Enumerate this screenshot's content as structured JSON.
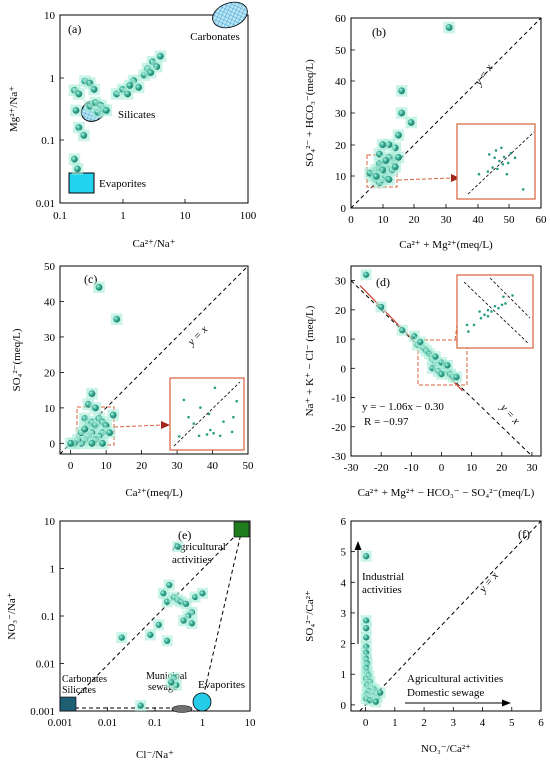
{
  "colors": {
    "point_fill": "#2a9d86",
    "point_halo": "#a9ecd9",
    "inset_box": "#d9623b",
    "carbonates_fill": "#bfe6f4",
    "evaporites_fill": "#22d2ee",
    "agri_box": "#1e7e1e",
    "carb_sil_box": "#1f5f73",
    "municipal_fill": "#707070",
    "evap_circle": "#27cde8",
    "silicates_fill": "#7fd5e8",
    "fit_line": "#c8402a"
  },
  "chart_data": [
    {
      "panel": "(a)",
      "type": "scatter",
      "xscale": "log",
      "yscale": "log",
      "xlim": [
        0.1,
        100
      ],
      "ylim": [
        0.01,
        10
      ],
      "xticks": [
        "0.1",
        "1",
        "10",
        "100"
      ],
      "yticks": [
        "0.01",
        "0.1",
        "1",
        "10"
      ],
      "xlabel": "Ca²⁺/Na⁺",
      "ylabel": "Mg²⁺/Na⁺",
      "regions": {
        "carbonates": "Carbonates",
        "silicates": "Silicates",
        "evaporites": "Evaporites"
      },
      "points": [
        [
          0.17,
          0.63
        ],
        [
          0.25,
          0.88
        ],
        [
          0.3,
          0.82
        ],
        [
          0.35,
          0.65
        ],
        [
          0.2,
          0.55
        ],
        [
          0.18,
          0.3
        ],
        [
          0.2,
          0.16
        ],
        [
          0.24,
          0.12
        ],
        [
          0.17,
          0.05
        ],
        [
          0.19,
          0.035
        ],
        [
          0.3,
          0.35
        ],
        [
          0.37,
          0.4
        ],
        [
          0.4,
          0.28
        ],
        [
          0.45,
          0.36
        ],
        [
          0.5,
          0.31
        ],
        [
          0.55,
          0.3
        ],
        [
          0.8,
          0.55
        ],
        [
          1.0,
          0.65
        ],
        [
          1.2,
          0.55
        ],
        [
          1.5,
          0.9
        ],
        [
          1.8,
          0.7
        ],
        [
          2.2,
          1.1
        ],
        [
          2.5,
          1.4
        ],
        [
          3.0,
          1.8
        ],
        [
          3.5,
          1.5
        ],
        [
          4.0,
          2.2
        ],
        [
          2.8,
          1.2
        ],
        [
          1.3,
          0.75
        ]
      ]
    },
    {
      "panel": "(b)",
      "type": "scatter",
      "xlim": [
        0,
        60
      ],
      "ylim": [
        0,
        60
      ],
      "xticks": [
        "0",
        "10",
        "20",
        "30",
        "40",
        "50",
        "60"
      ],
      "yticks": [
        "0",
        "10",
        "20",
        "30",
        "40",
        "50",
        "60"
      ],
      "xlabel": "Ca²⁺ + Mg²⁺(meq/L)",
      "ylabel": "SO₄²⁻ + HCO₃⁻(meq/L)",
      "line_label": "y = x",
      "points": [
        [
          31,
          57
        ],
        [
          19,
          27
        ],
        [
          16,
          37
        ],
        [
          16,
          30
        ],
        [
          15,
          23
        ],
        [
          14,
          19
        ],
        [
          12,
          20
        ],
        [
          10,
          20
        ],
        [
          9,
          17
        ],
        [
          13,
          15
        ],
        [
          12,
          16
        ],
        [
          11,
          13
        ],
        [
          10,
          11
        ],
        [
          8,
          12
        ],
        [
          7,
          10
        ],
        [
          8,
          9
        ],
        [
          9,
          8
        ],
        [
          10,
          9
        ],
        [
          11,
          10
        ],
        [
          12,
          9
        ],
        [
          13,
          12
        ],
        [
          14,
          13
        ],
        [
          15,
          16
        ],
        [
          6,
          11
        ],
        [
          9,
          14
        ],
        [
          11,
          15
        ],
        [
          10,
          12
        ],
        [
          8,
          10
        ]
      ],
      "inset_points": [
        [
          0.25,
          0.3
        ],
        [
          0.38,
          0.34
        ],
        [
          0.45,
          0.4
        ],
        [
          0.52,
          0.38
        ],
        [
          0.6,
          0.45
        ],
        [
          0.55,
          0.5
        ],
        [
          0.48,
          0.55
        ],
        [
          0.62,
          0.56
        ],
        [
          0.68,
          0.47
        ],
        [
          0.72,
          0.62
        ],
        [
          0.5,
          0.66
        ],
        [
          0.4,
          0.6
        ],
        [
          0.58,
          0.7
        ],
        [
          0.78,
          0.55
        ],
        [
          0.66,
          0.3
        ],
        [
          0.9,
          0.07
        ]
      ]
    },
    {
      "panel": "(c)",
      "type": "scatter",
      "xlim": [
        -3,
        50
      ],
      "ylim": [
        -3,
        50
      ],
      "xticks": [
        "0",
        "10",
        "20",
        "30",
        "40",
        "50"
      ],
      "yticks": [
        "0",
        "10",
        "20",
        "30",
        "40",
        "50"
      ],
      "xlabel": "Ca²⁺(meq/L)",
      "ylabel": "SO₄²⁻(meq/L)",
      "line_label": "y = x",
      "points": [
        [
          8,
          44
        ],
        [
          13,
          35
        ],
        [
          6,
          14
        ],
        [
          5,
          11
        ],
        [
          7,
          10
        ],
        [
          4,
          7
        ],
        [
          5,
          5
        ],
        [
          6,
          6
        ],
        [
          7,
          5
        ],
        [
          8,
          7
        ],
        [
          9,
          6
        ],
        [
          10,
          5
        ],
        [
          9,
          3
        ],
        [
          8,
          2
        ],
        [
          6,
          3
        ],
        [
          5,
          2
        ],
        [
          4,
          1
        ],
        [
          3,
          0
        ],
        [
          2,
          1
        ],
        [
          7,
          1
        ],
        [
          9,
          0
        ],
        [
          1,
          0
        ],
        [
          0,
          0
        ],
        [
          3,
          3
        ],
        [
          12,
          8
        ],
        [
          11,
          3
        ],
        [
          6,
          0
        ],
        [
          4,
          4
        ]
      ],
      "inset_points": [
        [
          0.62,
          0.91
        ],
        [
          0.15,
          0.72
        ],
        [
          0.4,
          0.6
        ],
        [
          0.22,
          0.45
        ],
        [
          0.53,
          0.5
        ],
        [
          0.95,
          0.7
        ],
        [
          0.88,
          0.22
        ],
        [
          0.6,
          0.2
        ],
        [
          0.5,
          0.18
        ],
        [
          0.55,
          0.25
        ],
        [
          0.7,
          0.16
        ],
        [
          0.3,
          0.35
        ],
        [
          0.08,
          0.15
        ],
        [
          0.38,
          0.16
        ],
        [
          0.75,
          0.38
        ],
        [
          0.9,
          0.45
        ]
      ]
    },
    {
      "panel": "(d)",
      "type": "scatter",
      "xlim": [
        -30,
        33
      ],
      "ylim": [
        -30,
        35
      ],
      "xticks": [
        "-30",
        "-20",
        "-10",
        "0",
        "10",
        "20",
        "30"
      ],
      "yticks": [
        "-30",
        "-20",
        "-10",
        "0",
        "10",
        "20",
        "30"
      ],
      "xlabel": "Ca²⁺ + Mg²⁺ − HCO₃⁻ − SO₄²⁻(meq/L)",
      "ylabel": "Na⁺ + K⁺ − Cl⁻ (meq/L)",
      "line_label": "y = x",
      "equation": "y = − 1.06x − 0.30",
      "r_value": "R = −0.97",
      "fit": {
        "slope": -1.06,
        "intercept": -0.3
      },
      "points": [
        [
          -25,
          32
        ],
        [
          -20,
          21
        ],
        [
          -13,
          13
        ],
        [
          -9,
          11
        ],
        [
          -8,
          8
        ],
        [
          -6,
          7
        ],
        [
          -5,
          6
        ],
        [
          -4,
          5
        ],
        [
          -3,
          3
        ],
        [
          -2,
          2
        ],
        [
          -1,
          1
        ],
        [
          0,
          0
        ],
        [
          1,
          0
        ],
        [
          2,
          -1
        ],
        [
          3,
          -2
        ],
        [
          1,
          1
        ],
        [
          0,
          2
        ],
        [
          -2,
          4
        ],
        [
          -3,
          0
        ],
        [
          4,
          -3
        ],
        [
          -1,
          -1
        ],
        [
          2,
          1
        ],
        [
          0,
          -2
        ],
        [
          -7,
          9
        ],
        [
          5,
          -3
        ]
      ],
      "inset_points": [
        [
          0.1,
          0.3
        ],
        [
          0.2,
          0.3
        ],
        [
          0.3,
          0.4
        ],
        [
          0.35,
          0.45
        ],
        [
          0.4,
          0.43
        ],
        [
          0.45,
          0.5
        ],
        [
          0.55,
          0.55
        ],
        [
          0.5,
          0.58
        ],
        [
          0.6,
          0.6
        ],
        [
          0.65,
          0.62
        ],
        [
          0.62,
          0.72
        ],
        [
          0.75,
          0.74
        ],
        [
          0.28,
          0.5
        ],
        [
          0.4,
          0.52
        ],
        [
          0.12,
          0.2
        ]
      ]
    },
    {
      "panel": "(e)",
      "type": "scatter",
      "xscale": "log",
      "yscale": "log",
      "xlim": [
        0.001,
        10
      ],
      "ylim": [
        0.001,
        10
      ],
      "xticks": [
        "0.001",
        "0.01",
        "0.1",
        "1",
        "10"
      ],
      "yticks": [
        "0.001",
        "0.01",
        "0.1",
        "1",
        "10"
      ],
      "xlabel": "Cl⁻/Na⁺",
      "ylabel": "NO₃⁻/Na⁺",
      "end_members": {
        "agricultural": "Agricultural activities",
        "carbonates_silicates": "Carbonates Silicates",
        "municipal": "Municipal sewage",
        "evaporites": "Evaporites"
      },
      "points": [
        [
          0.3,
          2.9
        ],
        [
          0.2,
          0.45
        ],
        [
          0.15,
          0.3
        ],
        [
          0.18,
          0.2
        ],
        [
          0.25,
          0.25
        ],
        [
          0.3,
          0.22
        ],
        [
          0.35,
          0.2
        ],
        [
          0.45,
          0.18
        ],
        [
          0.7,
          0.25
        ],
        [
          1.0,
          0.3
        ],
        [
          0.6,
          0.12
        ],
        [
          0.5,
          0.1
        ],
        [
          0.4,
          0.08
        ],
        [
          0.12,
          0.065
        ],
        [
          0.08,
          0.04
        ],
        [
          0.18,
          0.03
        ],
        [
          0.25,
          0.005
        ],
        [
          0.28,
          0.0035
        ],
        [
          0.22,
          0.004
        ],
        [
          0.05,
          0.0013
        ],
        [
          0.02,
          0.035
        ],
        [
          0.6,
          0.07
        ]
      ]
    },
    {
      "panel": "(f)",
      "type": "scatter",
      "xlim": [
        -0.5,
        6
      ],
      "ylim": [
        -0.2,
        6
      ],
      "xticks": [
        "0",
        "1",
        "2",
        "3",
        "4",
        "5",
        "6"
      ],
      "yticks": [
        "0",
        "1",
        "2",
        "3",
        "4",
        "5",
        "6"
      ],
      "xlabel": "NO₃⁻/Ca²⁺",
      "ylabel": "SO₄²⁻/Ca²⁺",
      "line_label": "y = x",
      "industrial_label": "Industrial activities",
      "agri_label": "Agricultural activities",
      "domestic_label": "Domestic sewage",
      "points": [
        [
          0.02,
          4.85
        ],
        [
          0.02,
          2.75
        ],
        [
          0.02,
          2.5
        ],
        [
          0.02,
          2.2
        ],
        [
          0.02,
          1.9
        ],
        [
          0.02,
          1.7
        ],
        [
          0.02,
          1.5
        ],
        [
          0.05,
          1.35
        ],
        [
          0.02,
          1.2
        ],
        [
          0.05,
          1.05
        ],
        [
          0.1,
          0.95
        ],
        [
          0.02,
          0.85
        ],
        [
          0.15,
          0.75
        ],
        [
          0.05,
          0.65
        ],
        [
          0.2,
          0.55
        ],
        [
          0.3,
          0.5
        ],
        [
          0.1,
          0.45
        ],
        [
          0.05,
          0.35
        ],
        [
          0.25,
          0.3
        ],
        [
          0.4,
          0.25
        ],
        [
          0.02,
          0.2
        ],
        [
          0.15,
          0.15
        ],
        [
          0.35,
          0.1
        ],
        [
          0.5,
          0.4
        ]
      ]
    }
  ]
}
